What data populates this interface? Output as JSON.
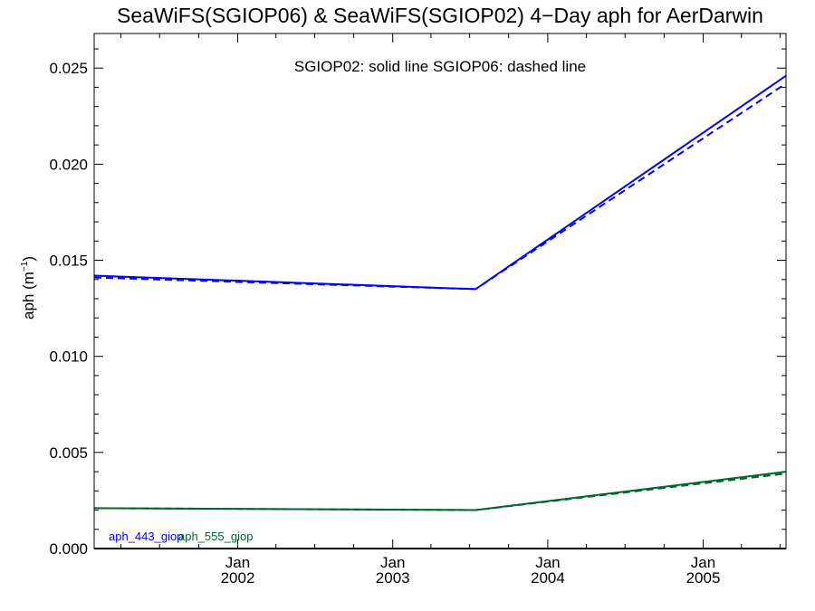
{
  "chart_data": {
    "type": "line",
    "title": "SeaWiFS(SGIOP06) & SeaWiFS(SGIOP02) 4−Day aph for AerDarwin",
    "subtitle": "SGIOP02: solid line   SGIOP06: dashed line",
    "ylabel": "aph (m",
    "ylabel_sup": "−1",
    "ylabel_close": ")",
    "xlabel": "",
    "ylim": [
      0.0,
      0.0268
    ],
    "xlim": [
      "2001-01-28",
      "2005-07-15"
    ],
    "yticks": [
      {
        "value": 0.0,
        "label": "0.000"
      },
      {
        "value": 0.005,
        "label": "0.005"
      },
      {
        "value": 0.01,
        "label": "0.010"
      },
      {
        "value": 0.015,
        "label": "0.015"
      },
      {
        "value": 0.02,
        "label": "0.020"
      },
      {
        "value": 0.025,
        "label": "0.025"
      }
    ],
    "xticks": [
      {
        "date": "2002-01-01",
        "month": "Jan",
        "year": "2002"
      },
      {
        "date": "2003-01-01",
        "month": "Jan",
        "year": "2003"
      },
      {
        "date": "2004-01-01",
        "month": "Jan",
        "year": "2004"
      },
      {
        "date": "2005-01-01",
        "month": "Jan",
        "year": "2005"
      }
    ],
    "grid": false,
    "zero_line": true,
    "series": [
      {
        "name": "aph_443_giop",
        "model": "SGIOP02",
        "style": "solid",
        "color": "#0000ff",
        "x": [
          "2001-01-28",
          "2003-07-15",
          "2005-07-15"
        ],
        "y": [
          0.0142,
          0.0135,
          0.0246
        ]
      },
      {
        "name": "aph_443_giop",
        "model": "SGIOP06",
        "style": "dashed",
        "color": "#0000ff",
        "x": [
          "2001-01-28",
          "2003-07-15",
          "2005-07-15"
        ],
        "y": [
          0.0141,
          0.0135,
          0.0242
        ]
      },
      {
        "name": "aph_555_giop",
        "model": "SGIOP02",
        "style": "solid",
        "color": "#00662a",
        "x": [
          "2001-01-28",
          "2003-07-15",
          "2005-07-15"
        ],
        "y": [
          0.0021,
          0.002,
          0.004
        ]
      },
      {
        "name": "aph_555_giop",
        "model": "SGIOP06",
        "style": "dashed",
        "color": "#00662a",
        "x": [
          "2001-01-28",
          "2003-07-15",
          "2005-07-15"
        ],
        "y": [
          0.0021,
          0.002,
          0.0039
        ]
      }
    ],
    "legend": [
      {
        "label": "aph_443_giop",
        "color": "#0000ff"
      },
      {
        "label": "aph_555_giop",
        "color": "#00662a"
      }
    ]
  }
}
